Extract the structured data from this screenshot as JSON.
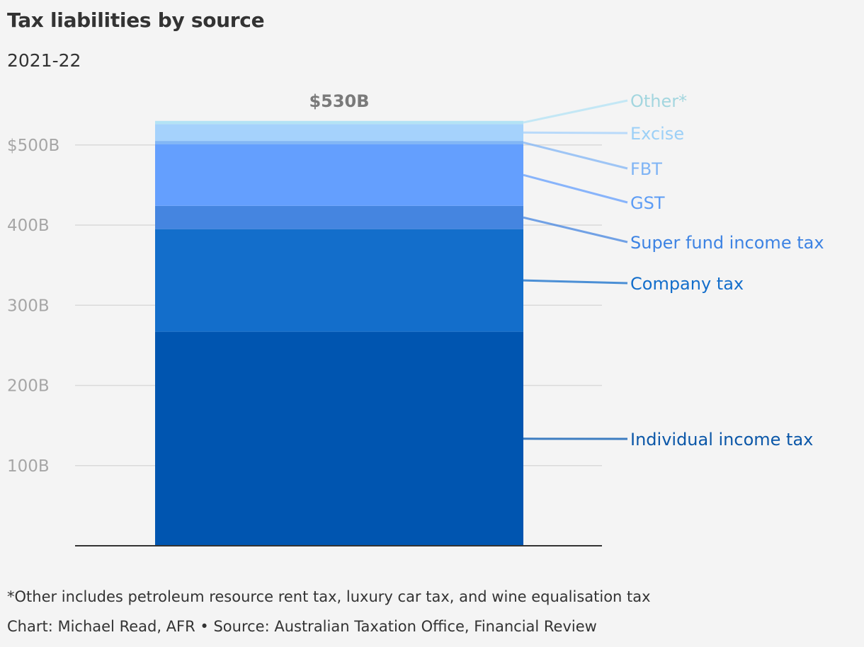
{
  "title": "Tax liabilities by source",
  "subtitle": "2021-22",
  "total_label": "$530B",
  "footnote": "*Other includes petroleum resource rent tax, luxury car tax, and wine equalisation tax",
  "credit": "Chart: Michael Read, AFR • Source: Australian Taxation Office, Financial Review",
  "chart_data": {
    "type": "bar",
    "stacked": true,
    "categories": [
      "2021-22"
    ],
    "ylim": [
      0,
      530
    ],
    "y_ticks": [
      100,
      200,
      300,
      400,
      500
    ],
    "y_tick_labels": [
      "100B",
      "200B",
      "300B",
      "400B",
      "$500B"
    ],
    "grid": true,
    "legend": "direct labels on right",
    "series": [
      {
        "name": "Individual income tax",
        "values": [
          267
        ],
        "color": "#0055b0",
        "label_color": "#0b57a8"
      },
      {
        "name": "Company tax",
        "values": [
          128
        ],
        "color": "#136ecb",
        "label_color": "#136ecb"
      },
      {
        "name": "Super fund income tax",
        "values": [
          29
        ],
        "color": "#4585e0",
        "label_color": "#3d83e3"
      },
      {
        "name": "GST",
        "values": [
          77
        ],
        "color": "#649ffe",
        "label_color": "#5c9cf5"
      },
      {
        "name": "FBT",
        "values": [
          4
        ],
        "color": "#82b6f5",
        "label_color": "#7fb4f5"
      },
      {
        "name": "Excise",
        "values": [
          21
        ],
        "color": "#a5d2fc",
        "label_color": "#9cd0f7"
      },
      {
        "name": "Other*",
        "values": [
          4
        ],
        "color": "#b3e3f5",
        "label_color": "#a3d6df"
      }
    ]
  }
}
